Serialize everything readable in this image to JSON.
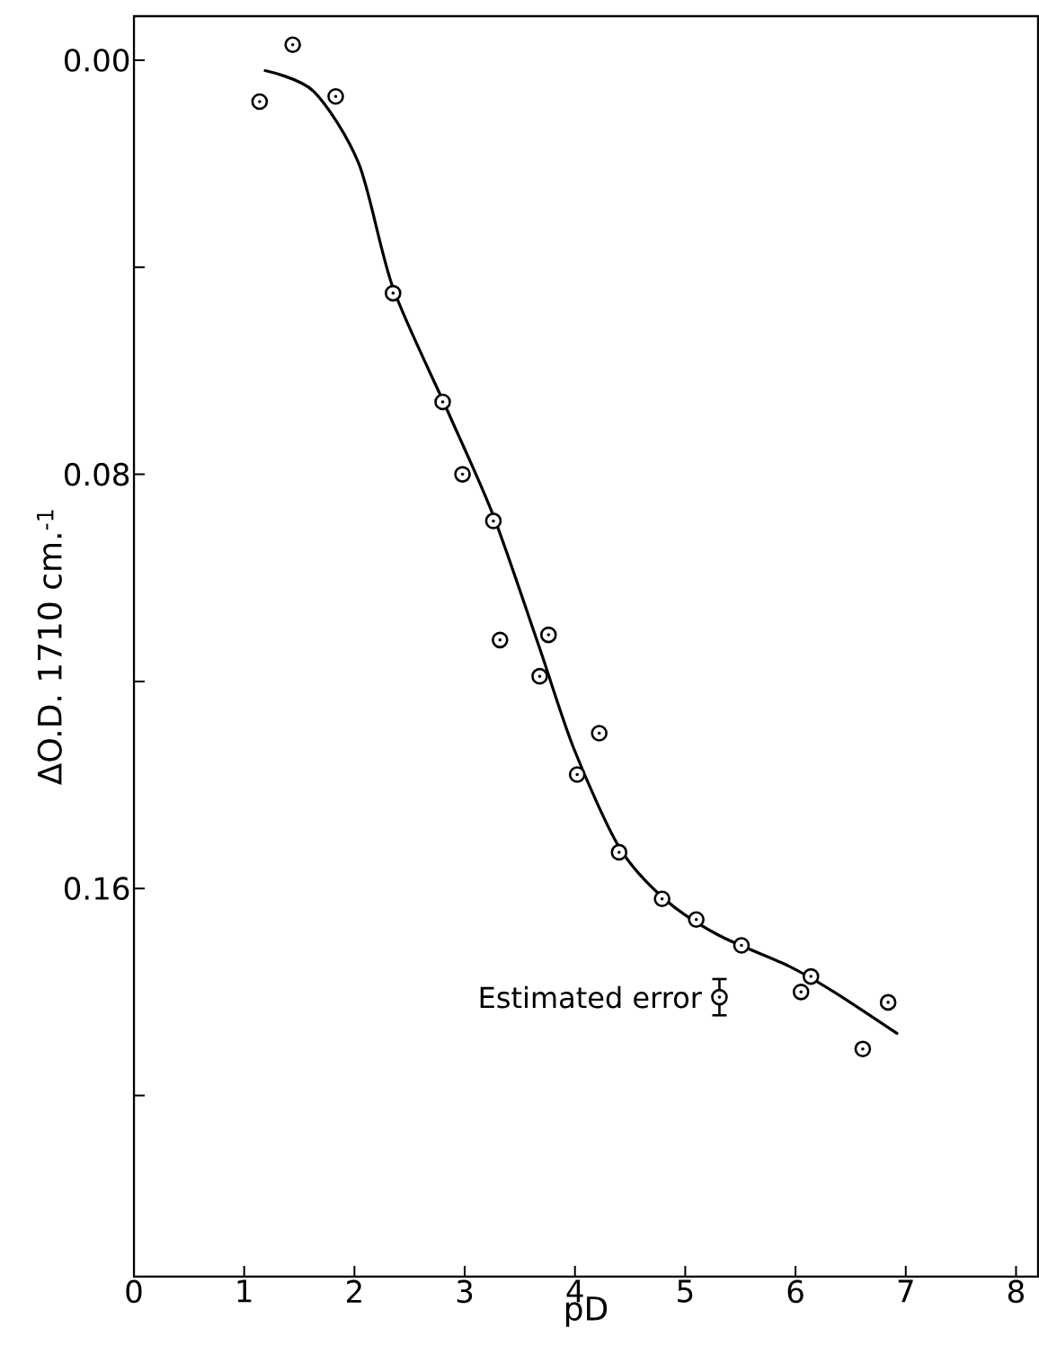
{
  "chart_data": {
    "type": "scatter",
    "xlabel": "pD",
    "ylabel": "ΔO.D. 1710 cm.$^{-1}$",
    "xlim": [
      0,
      8.2
    ],
    "ylim": [
      0.235,
      -0.0085
    ],
    "xticks": [
      0,
      1,
      2,
      3,
      4,
      5,
      6,
      7,
      8
    ],
    "yticks": [
      {
        "value": 0.0,
        "label": "0.00"
      },
      {
        "value": 0.04,
        "label": null
      },
      {
        "value": 0.08,
        "label": "0.08"
      },
      {
        "value": 0.12,
        "label": null
      },
      {
        "value": 0.16,
        "label": "0.16"
      },
      {
        "value": 0.2,
        "label": null
      }
    ],
    "grid": false,
    "series": [
      {
        "type": "line",
        "color": "#000000",
        "marker": "none",
        "line_style": "solid",
        "x": [
          1.19,
          1.63,
          2.04,
          2.35,
          2.85,
          3.26,
          3.67,
          3.99,
          4.4,
          4.81,
          5.3,
          5.94,
          6.35,
          6.92
        ],
        "values": [
          0.002,
          0.006,
          0.02,
          0.044,
          0.068,
          0.088,
          0.113,
          0.133,
          0.152,
          0.162,
          0.169,
          0.175,
          0.18,
          0.188
        ]
      },
      {
        "color": "#000000",
        "marker": "circle",
        "x": [
          1.14,
          1.44,
          1.83,
          2.35,
          2.8,
          2.98,
          3.26,
          3.32,
          3.76,
          3.68,
          4.22,
          4.02,
          4.4,
          4.79,
          5.1,
          5.51,
          6.05,
          6.14,
          6.61,
          6.84
        ],
        "values": [
          0.008,
          -0.003,
          0.007,
          0.045,
          0.066,
          0.08,
          0.089,
          0.112,
          0.111,
          0.119,
          0.13,
          0.138,
          0.153,
          0.162,
          0.166,
          0.171,
          0.18,
          0.177,
          0.191,
          0.182
        ]
      },
      {
        "name": "Estimated error",
        "color": "#000000",
        "marker": "circle",
        "x": [
          5.31
        ],
        "values": [
          0.181
        ],
        "errors": [
          0.0035
        ]
      }
    ]
  }
}
